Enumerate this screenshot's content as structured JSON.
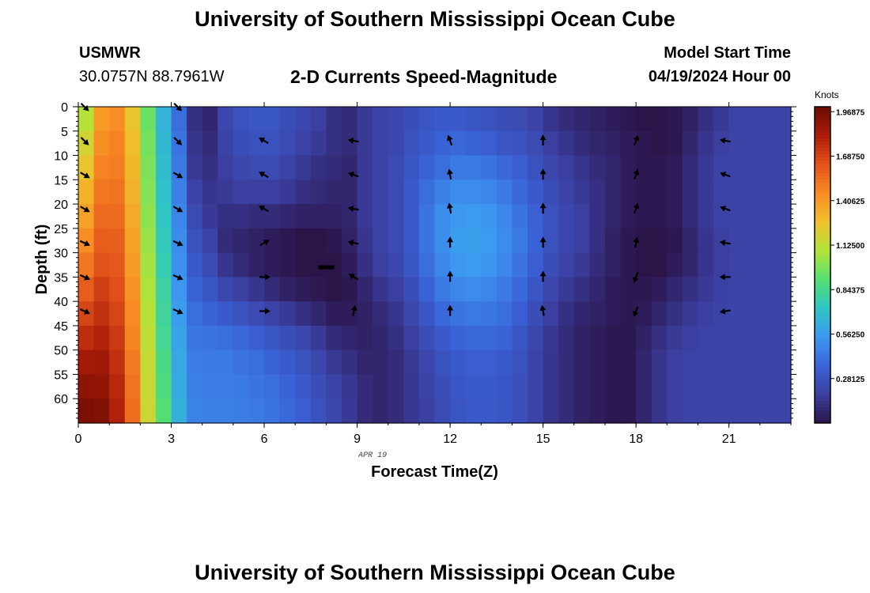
{
  "header": {
    "title": "University of Southern Mississippi Ocean Cube",
    "station_id": "USMWR",
    "coordinates": "30.0757N  88.7961W",
    "subtitle": "2-D Currents Speed-Magnitude",
    "model_start_label": "Model Start Time",
    "model_start_value": "04/19/2024 Hour 00"
  },
  "footer": {
    "title": "University of Southern Mississippi Ocean Cube"
  },
  "colors": {
    "arrow": "#000000",
    "current_marker": "#000000"
  },
  "chart_data": {
    "type": "heatmap",
    "xlabel": "Forecast Time(Z)",
    "ylabel": "Depth (ft)",
    "date_label": "APR 19",
    "xlim": [
      0,
      23
    ],
    "ylim": [
      65,
      0
    ],
    "x_ticks": [
      0,
      3,
      6,
      9,
      12,
      15,
      18,
      21
    ],
    "y_ticks": [
      0,
      5,
      10,
      15,
      20,
      25,
      30,
      35,
      40,
      45,
      50,
      55,
      60
    ],
    "colorbar": {
      "label": "Knots",
      "range": [
        0,
        2.0
      ],
      "ticks": [
        "1.96875",
        "1.68750",
        "1.40625",
        "1.12500",
        "0.84375",
        "0.56250",
        "0.28125"
      ],
      "tick_values": [
        1.96875,
        1.6875,
        1.40625,
        1.125,
        0.84375,
        0.5625,
        0.28125
      ],
      "colors": [
        "#2b1448",
        "#3b3fa0",
        "#3a63d8",
        "#3c99f1",
        "#2fc6c4",
        "#55e071",
        "#b3e33a",
        "#f0c02c",
        "#f98b23",
        "#e2531a",
        "#ac1c08",
        "#6a0b04"
      ]
    },
    "current_time_marker": {
      "x": 8.0,
      "depth": 33
    },
    "heatmap": {
      "hours": [
        0,
        0.5,
        1,
        1.5,
        2,
        2.5,
        3,
        3.5,
        4,
        4.5,
        5,
        5.5,
        6,
        6.5,
        7,
        7.5,
        8,
        8.5,
        9,
        9.5,
        10,
        10.5,
        11,
        11.5,
        12,
        12.5,
        13,
        13.5,
        14,
        14.5,
        15,
        15.5,
        16,
        16.5,
        17,
        17.5,
        18,
        18.5,
        19,
        19.5,
        20,
        20.5,
        21,
        21.5,
        22,
        22.5
      ],
      "depths": [
        0,
        5,
        10,
        15,
        20,
        25,
        30,
        35,
        40,
        45,
        50,
        55,
        60,
        65
      ],
      "speeds": [
        [
          1.1,
          1.18,
          1.25,
          1.32,
          1.38,
          1.45,
          1.52,
          1.6,
          1.68,
          1.76,
          1.84,
          1.9,
          1.95,
          1.97
        ],
        [
          1.4,
          1.44,
          1.48,
          1.52,
          1.56,
          1.6,
          1.64,
          1.7,
          1.75,
          1.8,
          1.85,
          1.89,
          1.93,
          1.95
        ],
        [
          1.45,
          1.48,
          1.5,
          1.53,
          1.56,
          1.59,
          1.62,
          1.65,
          1.68,
          1.72,
          1.75,
          1.78,
          1.8,
          1.82
        ],
        [
          1.25,
          1.28,
          1.3,
          1.32,
          1.35,
          1.38,
          1.4,
          1.43,
          1.46,
          1.48,
          1.51,
          1.53,
          1.55,
          1.56
        ],
        [
          0.95,
          0.97,
          0.99,
          1.0,
          1.02,
          1.04,
          1.06,
          1.08,
          1.1,
          1.12,
          1.14,
          1.15,
          1.16,
          1.17
        ],
        [
          0.65,
          0.67,
          0.69,
          0.71,
          0.73,
          0.75,
          0.77,
          0.8,
          0.82,
          0.84,
          0.86,
          0.88,
          0.9,
          0.91
        ],
        [
          0.4,
          0.42,
          0.44,
          0.46,
          0.48,
          0.5,
          0.52,
          0.54,
          0.56,
          0.58,
          0.6,
          0.62,
          0.63,
          0.64
        ],
        [
          0.12,
          0.14,
          0.16,
          0.2,
          0.24,
          0.28,
          0.32,
          0.36,
          0.4,
          0.43,
          0.45,
          0.46,
          0.47,
          0.47
        ],
        [
          0.08,
          0.1,
          0.12,
          0.14,
          0.16,
          0.2,
          0.24,
          0.3,
          0.36,
          0.42,
          0.44,
          0.45,
          0.46,
          0.46
        ],
        [
          0.22,
          0.2,
          0.18,
          0.16,
          0.12,
          0.1,
          0.14,
          0.22,
          0.32,
          0.4,
          0.44,
          0.45,
          0.46,
          0.46
        ],
        [
          0.28,
          0.26,
          0.22,
          0.18,
          0.12,
          0.08,
          0.1,
          0.18,
          0.28,
          0.38,
          0.42,
          0.44,
          0.45,
          0.45
        ],
        [
          0.3,
          0.28,
          0.24,
          0.18,
          0.1,
          0.06,
          0.06,
          0.14,
          0.24,
          0.34,
          0.4,
          0.42,
          0.44,
          0.44
        ],
        [
          0.3,
          0.28,
          0.24,
          0.18,
          0.1,
          0.04,
          0.04,
          0.1,
          0.2,
          0.3,
          0.36,
          0.4,
          0.42,
          0.42
        ],
        [
          0.26,
          0.24,
          0.2,
          0.16,
          0.08,
          0.02,
          0.02,
          0.06,
          0.16,
          0.26,
          0.32,
          0.36,
          0.38,
          0.38
        ],
        [
          0.22,
          0.2,
          0.16,
          0.12,
          0.06,
          0.0,
          0.0,
          0.04,
          0.12,
          0.22,
          0.28,
          0.32,
          0.34,
          0.34
        ],
        [
          0.18,
          0.16,
          0.12,
          0.1,
          0.06,
          0.0,
          0.0,
          0.02,
          0.08,
          0.16,
          0.22,
          0.26,
          0.28,
          0.28
        ],
        [
          0.12,
          0.12,
          0.1,
          0.08,
          0.06,
          0.02,
          0.0,
          0.0,
          0.04,
          0.1,
          0.16,
          0.2,
          0.22,
          0.22
        ],
        [
          0.1,
          0.1,
          0.08,
          0.08,
          0.08,
          0.06,
          0.04,
          0.02,
          0.04,
          0.08,
          0.12,
          0.15,
          0.16,
          0.16
        ],
        [
          0.16,
          0.16,
          0.16,
          0.16,
          0.16,
          0.14,
          0.12,
          0.08,
          0.06,
          0.06,
          0.08,
          0.1,
          0.1,
          0.1
        ],
        [
          0.2,
          0.2,
          0.2,
          0.2,
          0.2,
          0.2,
          0.18,
          0.14,
          0.1,
          0.08,
          0.08,
          0.08,
          0.08,
          0.08
        ],
        [
          0.22,
          0.22,
          0.24,
          0.24,
          0.24,
          0.24,
          0.22,
          0.18,
          0.14,
          0.12,
          0.1,
          0.1,
          0.1,
          0.1
        ],
        [
          0.26,
          0.28,
          0.3,
          0.32,
          0.32,
          0.32,
          0.3,
          0.26,
          0.22,
          0.18,
          0.16,
          0.15,
          0.15,
          0.15
        ],
        [
          0.3,
          0.32,
          0.36,
          0.4,
          0.42,
          0.42,
          0.4,
          0.36,
          0.3,
          0.26,
          0.22,
          0.2,
          0.19,
          0.19
        ],
        [
          0.32,
          0.36,
          0.4,
          0.46,
          0.5,
          0.5,
          0.48,
          0.44,
          0.38,
          0.32,
          0.28,
          0.26,
          0.25,
          0.25
        ],
        [
          0.32,
          0.38,
          0.44,
          0.5,
          0.54,
          0.56,
          0.54,
          0.48,
          0.42,
          0.36,
          0.32,
          0.3,
          0.29,
          0.29
        ],
        [
          0.3,
          0.36,
          0.44,
          0.5,
          0.55,
          0.57,
          0.55,
          0.5,
          0.44,
          0.38,
          0.34,
          0.32,
          0.31,
          0.31
        ],
        [
          0.28,
          0.34,
          0.42,
          0.48,
          0.53,
          0.55,
          0.53,
          0.48,
          0.43,
          0.38,
          0.34,
          0.32,
          0.31,
          0.31
        ],
        [
          0.26,
          0.3,
          0.38,
          0.44,
          0.48,
          0.5,
          0.48,
          0.44,
          0.4,
          0.36,
          0.32,
          0.3,
          0.3,
          0.3
        ],
        [
          0.24,
          0.28,
          0.34,
          0.38,
          0.42,
          0.44,
          0.42,
          0.38,
          0.34,
          0.3,
          0.28,
          0.27,
          0.27,
          0.27
        ],
        [
          0.2,
          0.24,
          0.28,
          0.32,
          0.35,
          0.36,
          0.34,
          0.3,
          0.26,
          0.22,
          0.2,
          0.2,
          0.2,
          0.2
        ],
        [
          0.14,
          0.18,
          0.22,
          0.26,
          0.28,
          0.28,
          0.26,
          0.22,
          0.18,
          0.15,
          0.14,
          0.14,
          0.14,
          0.14
        ],
        [
          0.1,
          0.14,
          0.18,
          0.2,
          0.22,
          0.22,
          0.2,
          0.16,
          0.12,
          0.1,
          0.1,
          0.1,
          0.1,
          0.1
        ],
        [
          0.08,
          0.1,
          0.14,
          0.16,
          0.18,
          0.18,
          0.16,
          0.12,
          0.08,
          0.06,
          0.06,
          0.06,
          0.06,
          0.06
        ],
        [
          0.06,
          0.08,
          0.1,
          0.12,
          0.12,
          0.12,
          0.1,
          0.08,
          0.06,
          0.04,
          0.04,
          0.04,
          0.04,
          0.04
        ],
        [
          0.04,
          0.06,
          0.08,
          0.08,
          0.08,
          0.06,
          0.06,
          0.04,
          0.04,
          0.02,
          0.02,
          0.02,
          0.02,
          0.02
        ],
        [
          0.02,
          0.04,
          0.04,
          0.04,
          0.04,
          0.02,
          0.02,
          0.02,
          0.02,
          0.02,
          0.02,
          0.02,
          0.02,
          0.02
        ],
        [
          0.0,
          0.02,
          0.02,
          0.02,
          0.02,
          0.0,
          0.0,
          0.02,
          0.04,
          0.06,
          0.08,
          0.08,
          0.08,
          0.08
        ],
        [
          0.0,
          0.0,
          0.02,
          0.02,
          0.02,
          0.0,
          0.0,
          0.04,
          0.08,
          0.12,
          0.14,
          0.14,
          0.14,
          0.14
        ],
        [
          0.02,
          0.02,
          0.04,
          0.04,
          0.04,
          0.02,
          0.04,
          0.08,
          0.12,
          0.16,
          0.18,
          0.18,
          0.18,
          0.18
        ],
        [
          0.06,
          0.08,
          0.1,
          0.1,
          0.1,
          0.08,
          0.08,
          0.12,
          0.16,
          0.18,
          0.2,
          0.2,
          0.2,
          0.2
        ],
        [
          0.12,
          0.14,
          0.16,
          0.16,
          0.16,
          0.14,
          0.14,
          0.16,
          0.18,
          0.2,
          0.21,
          0.21,
          0.21,
          0.21
        ],
        [
          0.16,
          0.18,
          0.2,
          0.2,
          0.2,
          0.18,
          0.18,
          0.19,
          0.2,
          0.21,
          0.21,
          0.21,
          0.21,
          0.21
        ],
        [
          0.2,
          0.2,
          0.21,
          0.21,
          0.21,
          0.2,
          0.2,
          0.2,
          0.21,
          0.21,
          0.21,
          0.21,
          0.21,
          0.21
        ],
        [
          0.21,
          0.21,
          0.21,
          0.21,
          0.21,
          0.21,
          0.21,
          0.21,
          0.21,
          0.21,
          0.21,
          0.21,
          0.21,
          0.21
        ],
        [
          0.21,
          0.21,
          0.21,
          0.21,
          0.21,
          0.21,
          0.21,
          0.21,
          0.21,
          0.21,
          0.21,
          0.21,
          0.21,
          0.21
        ],
        [
          0.21,
          0.21,
          0.21,
          0.21,
          0.21,
          0.21,
          0.21,
          0.21,
          0.21,
          0.21,
          0.21,
          0.21,
          0.21,
          0.21
        ]
      ]
    },
    "vectors": {
      "times": [
        0.2,
        3.2,
        6.0,
        8.9,
        12.0,
        15.0,
        18.0,
        20.9
      ],
      "depths": [
        0,
        7,
        14,
        21,
        28,
        35,
        42
      ],
      "directions_deg": [
        [
          135,
          135,
          120,
          120,
          115,
          115,
          115
        ],
        [
          135,
          135,
          120,
          120,
          115,
          115,
          115
        ],
        [
          null,
          300,
          300,
          300,
          60,
          90,
          90
        ],
        [
          null,
          280,
          290,
          280,
          280,
          300,
          10
        ],
        [
          null,
          340,
          350,
          350,
          0,
          0,
          0
        ],
        [
          null,
          0,
          0,
          0,
          0,
          0,
          350
        ],
        [
          null,
          20,
          20,
          20,
          10,
          200,
          200
        ],
        [
          null,
          280,
          290,
          290,
          280,
          270,
          260
        ]
      ]
    }
  }
}
